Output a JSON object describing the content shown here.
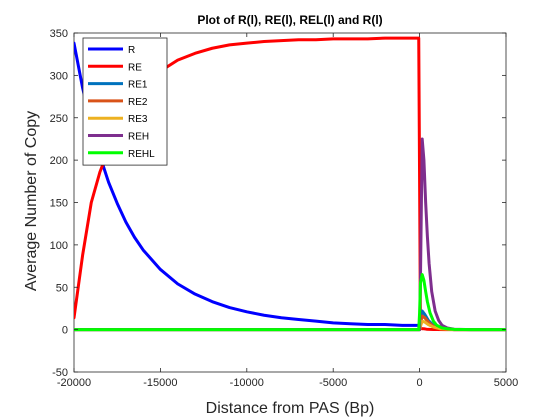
{
  "chart_data": {
    "type": "line",
    "title": "Plot of R(l), RE(l), REL(l) and R(l)",
    "xlabel": "Distance from PAS (Bp)",
    "ylabel": "Average Number of Copy",
    "xlim": [
      -20000,
      5000
    ],
    "ylim": [
      -50,
      350
    ],
    "xticks": [
      -20000,
      -15000,
      -10000,
      -5000,
      0,
      5000
    ],
    "xtick_labels": [
      "-20000",
      "-15000",
      "-10000",
      "-5000",
      "0",
      "5000"
    ],
    "yticks": [
      -50,
      0,
      50,
      100,
      150,
      200,
      250,
      300,
      350
    ],
    "ytick_labels": [
      "-50",
      "0",
      "50",
      "100",
      "150",
      "200",
      "250",
      "300",
      "350"
    ],
    "grid": false,
    "legend_position": "top-left",
    "series": [
      {
        "name": "R",
        "color": "#0000ff",
        "x": [
          -20000,
          -19500,
          -19000,
          -18500,
          -18000,
          -17500,
          -17000,
          -16500,
          -16000,
          -15000,
          -14000,
          -13000,
          -12000,
          -11000,
          -10000,
          -9000,
          -8000,
          -7000,
          -6000,
          -5000,
          -4000,
          -3000,
          -2000,
          -1000,
          0
        ],
        "y": [
          338,
          285,
          241,
          205,
          174,
          149,
          127,
          109,
          94,
          71,
          54,
          42,
          33,
          26,
          21,
          17,
          14,
          12,
          10,
          8,
          7,
          6,
          6,
          5,
          5
        ]
      },
      {
        "name": "RE",
        "color": "#ff0000",
        "x": [
          -20000,
          -19500,
          -19000,
          -18500,
          -18000,
          -17500,
          -17000,
          -16500,
          -16000,
          -15000,
          -14000,
          -13000,
          -12000,
          -11000,
          -10000,
          -9000,
          -8000,
          -7000,
          -6000,
          -5000,
          -4000,
          -3000,
          -2000,
          -1000,
          -50,
          50,
          150,
          250,
          400,
          600,
          800,
          1000,
          1500,
          2000,
          3000,
          4000,
          5000
        ],
        "y": [
          14,
          88,
          150,
          186,
          212,
          238,
          259,
          274,
          286,
          305,
          318,
          326,
          332,
          336,
          338,
          340,
          341,
          342,
          342,
          343,
          343,
          343,
          344,
          344,
          344,
          2,
          1,
          1,
          0.5,
          0.3,
          0.2,
          0.1,
          0,
          0,
          0,
          0,
          0
        ]
      },
      {
        "name": "RE1",
        "color": "#0072bd",
        "x": [
          -20000,
          0,
          50,
          150,
          300,
          500,
          800,
          1200,
          2000,
          5000
        ],
        "y": [
          0,
          0,
          8,
          22,
          18,
          11,
          5,
          1.5,
          0,
          0
        ]
      },
      {
        "name": "RE2",
        "color": "#d95319",
        "x": [
          -20000,
          0,
          50,
          150,
          300,
          500,
          800,
          1200,
          2000,
          5000
        ],
        "y": [
          0,
          0,
          6,
          16,
          14,
          9,
          4,
          1,
          0,
          0
        ]
      },
      {
        "name": "RE3",
        "color": "#edb120",
        "x": [
          -20000,
          0,
          50,
          150,
          300,
          500,
          800,
          1200,
          2000,
          5000
        ],
        "y": [
          0,
          0,
          4,
          10,
          9,
          6,
          3,
          1,
          0,
          0
        ]
      },
      {
        "name": "REH",
        "color": "#7e2f8e",
        "x": [
          -20000,
          0,
          50,
          150,
          250,
          350,
          450,
          550,
          700,
          900,
          1100,
          1300,
          1600,
          2000,
          3000,
          5000
        ],
        "y": [
          0,
          0,
          60,
          225,
          200,
          150,
          110,
          78,
          45,
          22,
          11,
          5,
          2,
          0.5,
          0,
          0
        ]
      },
      {
        "name": "REHL",
        "color": "#00ff00",
        "x": [
          -20000,
          -50,
          0,
          50,
          150,
          250,
          350,
          450,
          600,
          800,
          1000,
          1300,
          1600,
          2000,
          3000,
          5000
        ],
        "y": [
          0,
          0,
          20,
          55,
          65,
          58,
          45,
          33,
          20,
          10,
          5,
          2,
          1,
          0.3,
          0,
          0
        ]
      }
    ]
  }
}
